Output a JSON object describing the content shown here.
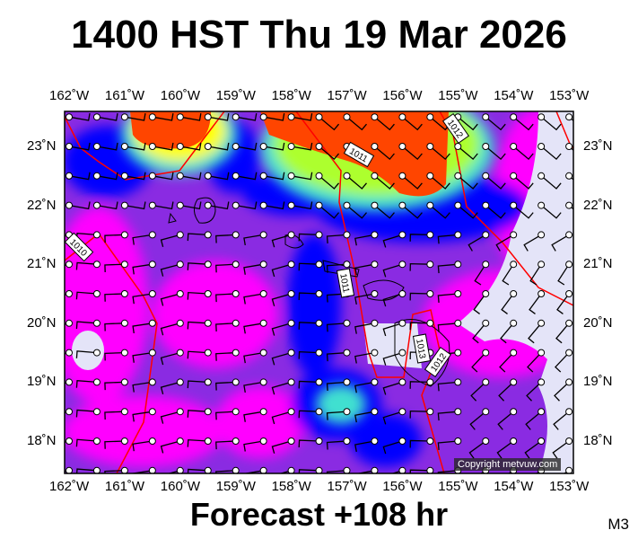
{
  "title": "1400 HST Thu 19 Mar 2026",
  "footer": "Forecast +108 hr",
  "model": "M3",
  "copyright": "Copyright metvuw.com",
  "lon_labels": [
    "162˚W",
    "161˚W",
    "160˚W",
    "159˚W",
    "158˚W",
    "157˚W",
    "156˚W",
    "155˚W",
    "154˚W",
    "153˚W"
  ],
  "lat_labels": [
    "23˚N",
    "22˚N",
    "21˚N",
    "20˚N",
    "19˚N",
    "18˚N"
  ],
  "extent": {
    "lon": [
      -162.1,
      -152.9
    ],
    "lat": [
      17.45,
      23.6
    ]
  },
  "isobar_labels": [
    "1011",
    "1012",
    "1010",
    "1011",
    "1013",
    "1012"
  ],
  "colors": {
    "background": "#8a2be2",
    "magenta": "#ff00ff",
    "blue": "#0000ff",
    "calm": "#e4e4f8",
    "heavy": "#ff4500",
    "isobar": "#ff0000"
  }
}
